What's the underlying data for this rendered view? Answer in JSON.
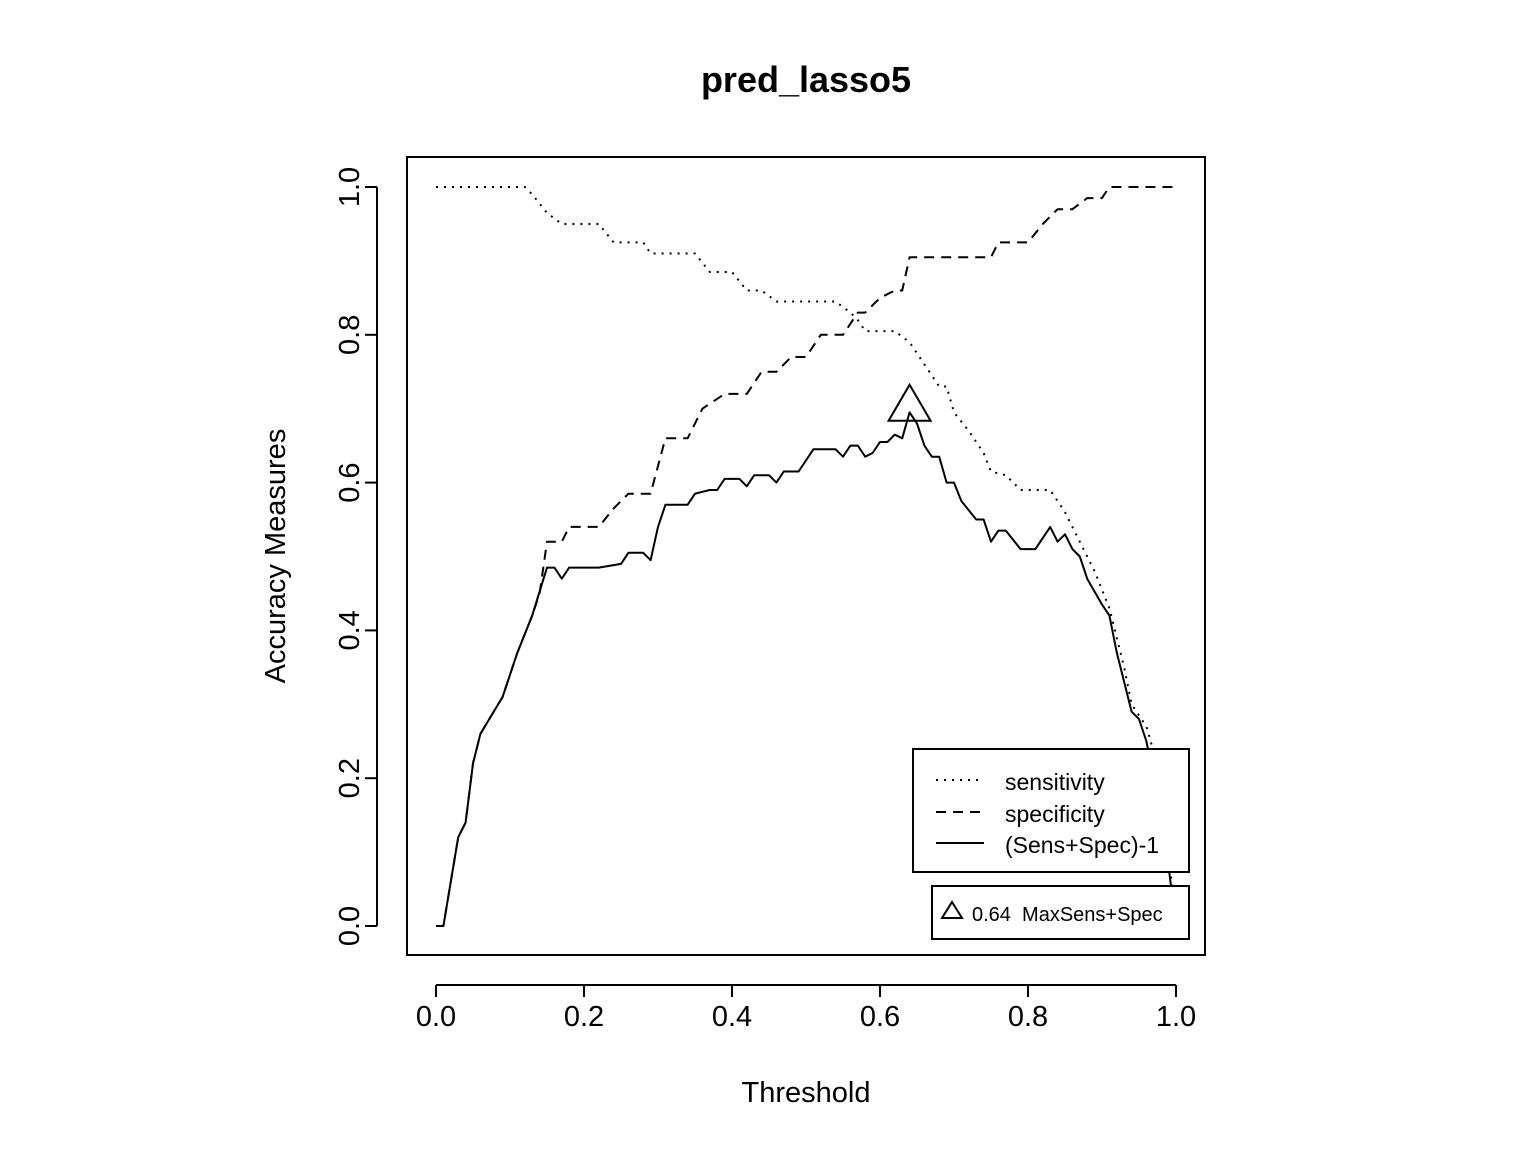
{
  "chart_data": {
    "type": "line",
    "title": "pred_lasso5",
    "xlabel": "Threshold",
    "ylabel": "Accuracy Measures",
    "xlim": [
      0,
      1
    ],
    "ylim": [
      0,
      1
    ],
    "xticks": [
      "0.0",
      "0.2",
      "0.4",
      "0.6",
      "0.8",
      "1.0"
    ],
    "yticks": [
      "0.0",
      "0.2",
      "0.4",
      "0.6",
      "0.8",
      "1.0"
    ],
    "grid": false,
    "legend_position": "bottom-right",
    "series": [
      {
        "name": "sensitivity",
        "line_style": "dotted",
        "points": [
          [
            0.0,
            1.0
          ],
          [
            0.12,
            1.0
          ],
          [
            0.13,
            0.99
          ],
          [
            0.15,
            0.965
          ],
          [
            0.17,
            0.95
          ],
          [
            0.22,
            0.95
          ],
          [
            0.24,
            0.925
          ],
          [
            0.28,
            0.925
          ],
          [
            0.29,
            0.91
          ],
          [
            0.35,
            0.91
          ],
          [
            0.37,
            0.885
          ],
          [
            0.4,
            0.885
          ],
          [
            0.42,
            0.86
          ],
          [
            0.44,
            0.86
          ],
          [
            0.46,
            0.845
          ],
          [
            0.54,
            0.845
          ],
          [
            0.56,
            0.83
          ],
          [
            0.57,
            0.82
          ],
          [
            0.58,
            0.805
          ],
          [
            0.62,
            0.805
          ],
          [
            0.64,
            0.79
          ],
          [
            0.66,
            0.76
          ],
          [
            0.68,
            0.73
          ],
          [
            0.69,
            0.73
          ],
          [
            0.7,
            0.695
          ],
          [
            0.72,
            0.67
          ],
          [
            0.74,
            0.64
          ],
          [
            0.75,
            0.615
          ],
          [
            0.77,
            0.61
          ],
          [
            0.79,
            0.59
          ],
          [
            0.83,
            0.59
          ],
          [
            0.85,
            0.56
          ],
          [
            0.87,
            0.52
          ],
          [
            0.89,
            0.48
          ],
          [
            0.91,
            0.43
          ],
          [
            0.93,
            0.35
          ],
          [
            0.94,
            0.3
          ],
          [
            0.96,
            0.27
          ],
          [
            0.98,
            0.2
          ],
          [
            0.99,
            0.1
          ],
          [
            1.0,
            0.0
          ]
        ]
      },
      {
        "name": "specificity",
        "line_style": "dashed",
        "points": [
          [
            0.0,
            0.0
          ],
          [
            0.01,
            0.0
          ],
          [
            0.03,
            0.12
          ],
          [
            0.04,
            0.14
          ],
          [
            0.05,
            0.22
          ],
          [
            0.06,
            0.26
          ],
          [
            0.09,
            0.31
          ],
          [
            0.11,
            0.37
          ],
          [
            0.13,
            0.42
          ],
          [
            0.14,
            0.45
          ],
          [
            0.15,
            0.52
          ],
          [
            0.17,
            0.52
          ],
          [
            0.18,
            0.54
          ],
          [
            0.22,
            0.54
          ],
          [
            0.24,
            0.565
          ],
          [
            0.26,
            0.585
          ],
          [
            0.29,
            0.585
          ],
          [
            0.31,
            0.66
          ],
          [
            0.34,
            0.66
          ],
          [
            0.36,
            0.7
          ],
          [
            0.39,
            0.72
          ],
          [
            0.42,
            0.72
          ],
          [
            0.44,
            0.75
          ],
          [
            0.46,
            0.75
          ],
          [
            0.48,
            0.77
          ],
          [
            0.5,
            0.77
          ],
          [
            0.52,
            0.8
          ],
          [
            0.55,
            0.8
          ],
          [
            0.57,
            0.83
          ],
          [
            0.58,
            0.83
          ],
          [
            0.6,
            0.85
          ],
          [
            0.62,
            0.86
          ],
          [
            0.63,
            0.86
          ],
          [
            0.64,
            0.905
          ],
          [
            0.75,
            0.905
          ],
          [
            0.76,
            0.925
          ],
          [
            0.8,
            0.925
          ],
          [
            0.82,
            0.95
          ],
          [
            0.84,
            0.97
          ],
          [
            0.86,
            0.97
          ],
          [
            0.88,
            0.985
          ],
          [
            0.9,
            0.985
          ],
          [
            0.91,
            1.0
          ],
          [
            1.0,
            1.0
          ]
        ]
      },
      {
        "name": "(Sens+Spec)-1",
        "line_style": "solid",
        "points": [
          [
            0.0,
            0.0
          ],
          [
            0.01,
            0.0
          ],
          [
            0.03,
            0.12
          ],
          [
            0.04,
            0.14
          ],
          [
            0.05,
            0.22
          ],
          [
            0.06,
            0.26
          ],
          [
            0.09,
            0.31
          ],
          [
            0.11,
            0.37
          ],
          [
            0.13,
            0.42
          ],
          [
            0.15,
            0.485
          ],
          [
            0.16,
            0.485
          ],
          [
            0.17,
            0.47
          ],
          [
            0.18,
            0.485
          ],
          [
            0.22,
            0.485
          ],
          [
            0.25,
            0.49
          ],
          [
            0.26,
            0.505
          ],
          [
            0.28,
            0.505
          ],
          [
            0.29,
            0.495
          ],
          [
            0.3,
            0.54
          ],
          [
            0.31,
            0.57
          ],
          [
            0.34,
            0.57
          ],
          [
            0.35,
            0.585
          ],
          [
            0.37,
            0.59
          ],
          [
            0.38,
            0.59
          ],
          [
            0.39,
            0.605
          ],
          [
            0.41,
            0.605
          ],
          [
            0.42,
            0.595
          ],
          [
            0.43,
            0.61
          ],
          [
            0.45,
            0.61
          ],
          [
            0.46,
            0.6
          ],
          [
            0.47,
            0.615
          ],
          [
            0.49,
            0.615
          ],
          [
            0.51,
            0.645
          ],
          [
            0.54,
            0.645
          ],
          [
            0.55,
            0.635
          ],
          [
            0.56,
            0.65
          ],
          [
            0.57,
            0.65
          ],
          [
            0.58,
            0.635
          ],
          [
            0.59,
            0.64
          ],
          [
            0.6,
            0.655
          ],
          [
            0.61,
            0.655
          ],
          [
            0.62,
            0.665
          ],
          [
            0.63,
            0.66
          ],
          [
            0.64,
            0.695
          ],
          [
            0.65,
            0.68
          ],
          [
            0.66,
            0.65
          ],
          [
            0.67,
            0.635
          ],
          [
            0.68,
            0.635
          ],
          [
            0.69,
            0.6
          ],
          [
            0.7,
            0.6
          ],
          [
            0.71,
            0.575
          ],
          [
            0.73,
            0.55
          ],
          [
            0.74,
            0.55
          ],
          [
            0.75,
            0.52
          ],
          [
            0.76,
            0.535
          ],
          [
            0.77,
            0.535
          ],
          [
            0.79,
            0.51
          ],
          [
            0.81,
            0.51
          ],
          [
            0.83,
            0.54
          ],
          [
            0.84,
            0.52
          ],
          [
            0.85,
            0.53
          ],
          [
            0.86,
            0.51
          ],
          [
            0.87,
            0.5
          ],
          [
            0.88,
            0.47
          ],
          [
            0.9,
            0.435
          ],
          [
            0.91,
            0.42
          ],
          [
            0.92,
            0.37
          ],
          [
            0.93,
            0.33
          ],
          [
            0.94,
            0.29
          ],
          [
            0.95,
            0.28
          ],
          [
            0.96,
            0.25
          ],
          [
            0.97,
            0.2
          ],
          [
            0.98,
            0.15
          ],
          [
            0.99,
            0.08
          ],
          [
            1.0,
            0.0
          ]
        ]
      }
    ],
    "marker": {
      "shape": "triangle",
      "x": 0.64,
      "y": 0.7,
      "label": "0.64  MaxSens+Spec"
    }
  }
}
